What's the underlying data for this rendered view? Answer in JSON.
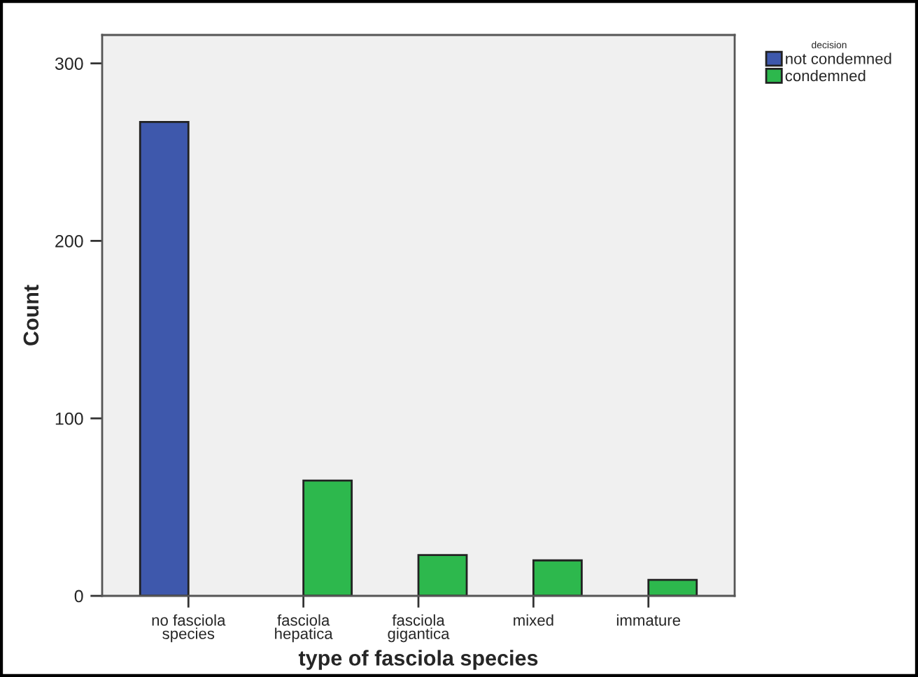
{
  "chart_data": {
    "type": "bar",
    "xlabel": "type of fasciola species",
    "ylabel": "Count",
    "legend_title": "decision",
    "categories": [
      "no fasciola\nspecies",
      "fasciola\nhepatica",
      "fasciola\ngigantica",
      "mixed",
      "immature"
    ],
    "series": [
      {
        "name": "not condemned",
        "color": "#3e58ac",
        "values": [
          267,
          null,
          null,
          null,
          null
        ]
      },
      {
        "name": "condemned",
        "color": "#2db84d",
        "values": [
          null,
          65,
          23,
          20,
          9
        ]
      }
    ],
    "ylim": [
      0,
      316
    ],
    "yticks": [
      0,
      100,
      200,
      300
    ],
    "grid": false,
    "legend": "top right"
  }
}
